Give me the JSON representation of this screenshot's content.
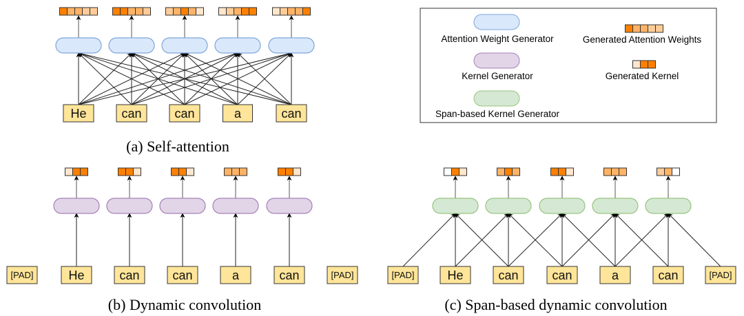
{
  "colors": {
    "attention_generator_fill": "#dae8fc",
    "attention_generator_stroke": "#7ea6d8",
    "kernel_generator_fill": "#e1d5e7",
    "kernel_generator_stroke": "#a680b8",
    "span_generator_fill": "#d5e8d4",
    "span_generator_stroke": "#97c47e",
    "token_fill": "#ffe599",
    "token_stroke": "#333333",
    "weight_levels": [
      "#ffffff",
      "#ffe6cc",
      "#ffcc99",
      "#ffb366",
      "#ff8000"
    ]
  },
  "legend": {
    "attention_generator": "Attention Weight Generator",
    "kernel_generator": "Kernel Generator",
    "span_generator": "Span-based Kernel Generator",
    "attention_weights": "Generated Attention Weights",
    "attention_weights_levels": [
      4,
      3,
      3,
      2,
      2
    ],
    "kernel": "Generated Kernel",
    "kernel_levels": [
      1,
      4,
      4
    ]
  },
  "panels": {
    "a": {
      "caption": "(a) Self-attention",
      "tokens": [
        "He",
        "can",
        "can",
        "a",
        "can"
      ],
      "weights": [
        [
          4,
          3,
          3,
          2,
          2
        ],
        [
          4,
          4,
          3,
          3,
          2
        ],
        [
          2,
          3,
          4,
          3,
          1
        ],
        [
          1,
          2,
          3,
          4,
          4
        ],
        [
          1,
          2,
          3,
          3,
          4
        ]
      ]
    },
    "b": {
      "caption": "(b) Dynamic convolution",
      "tokens": [
        "[PAD]",
        "He",
        "can",
        "can",
        "a",
        "can",
        "[PAD]"
      ],
      "weights": [
        [
          1,
          4,
          4
        ],
        [
          4,
          4,
          1
        ],
        [
          4,
          4,
          1
        ],
        [
          3,
          3,
          3
        ],
        [
          4,
          4,
          1
        ]
      ]
    },
    "c": {
      "caption": "(c) Span-based dynamic convolution",
      "tokens": [
        "[PAD]",
        "He",
        "can",
        "can",
        "a",
        "can",
        "[PAD]"
      ],
      "weights": [
        [
          0,
          4,
          1
        ],
        [
          3,
          4,
          3
        ],
        [
          4,
          4,
          1
        ],
        [
          3,
          3,
          3
        ],
        [
          2,
          3,
          0
        ]
      ]
    }
  }
}
